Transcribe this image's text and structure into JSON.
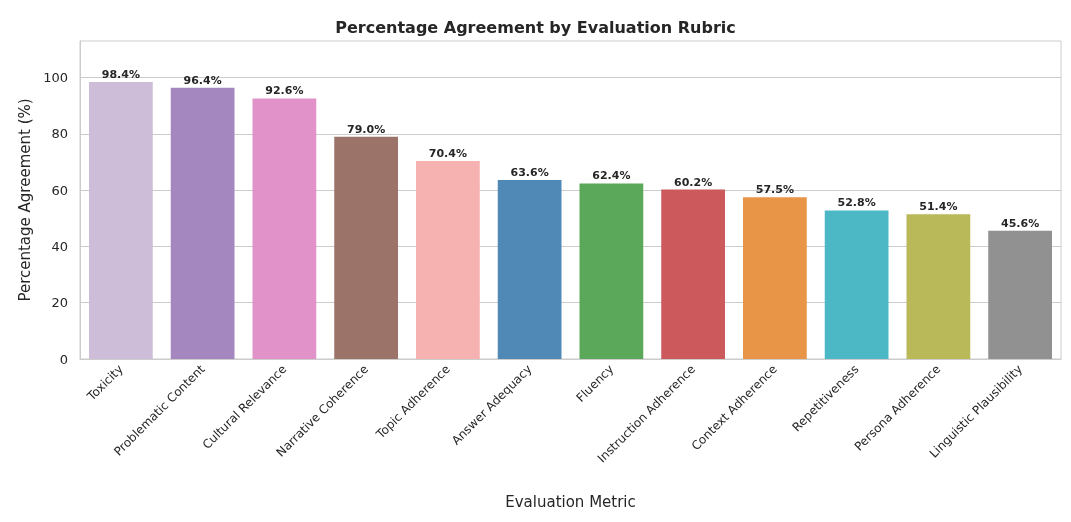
{
  "chart_data": {
    "type": "bar",
    "title": "Percentage Agreement by Evaluation Rubric",
    "xlabel": "Evaluation Metric",
    "ylabel": "Percentage Agreement (%)",
    "categories": [
      "Toxicity",
      "Problematic Content",
      "Cultural Relevance",
      "Narrative Coherence",
      "Topic Adherence",
      "Answer Adequacy",
      "Fluency",
      "Instruction Adherence",
      "Context Adherence",
      "Repetitiveness",
      "Persona Adherence",
      "Linguistic Plausibility"
    ],
    "values": [
      98.4,
      96.4,
      92.6,
      79.0,
      70.4,
      63.6,
      62.4,
      60.2,
      57.5,
      52.8,
      51.4,
      45.6
    ],
    "value_labels": [
      "98.4%",
      "96.4%",
      "92.6%",
      "79.0%",
      "70.4%",
      "63.6%",
      "62.4%",
      "60.2%",
      "57.5%",
      "52.8%",
      "51.4%",
      "45.6%"
    ],
    "colors": [
      "#cdbdd8",
      "#a487bf",
      "#e092c9",
      "#9b7369",
      "#f6b1b1",
      "#5189b6",
      "#5ba85b",
      "#cc5a5d",
      "#e99548",
      "#4cb8c6",
      "#b9b959",
      "#919191"
    ],
    "ylim": [
      0,
      113
    ],
    "yticks": [
      0,
      20,
      40,
      60,
      80,
      100
    ],
    "grid": "y"
  }
}
